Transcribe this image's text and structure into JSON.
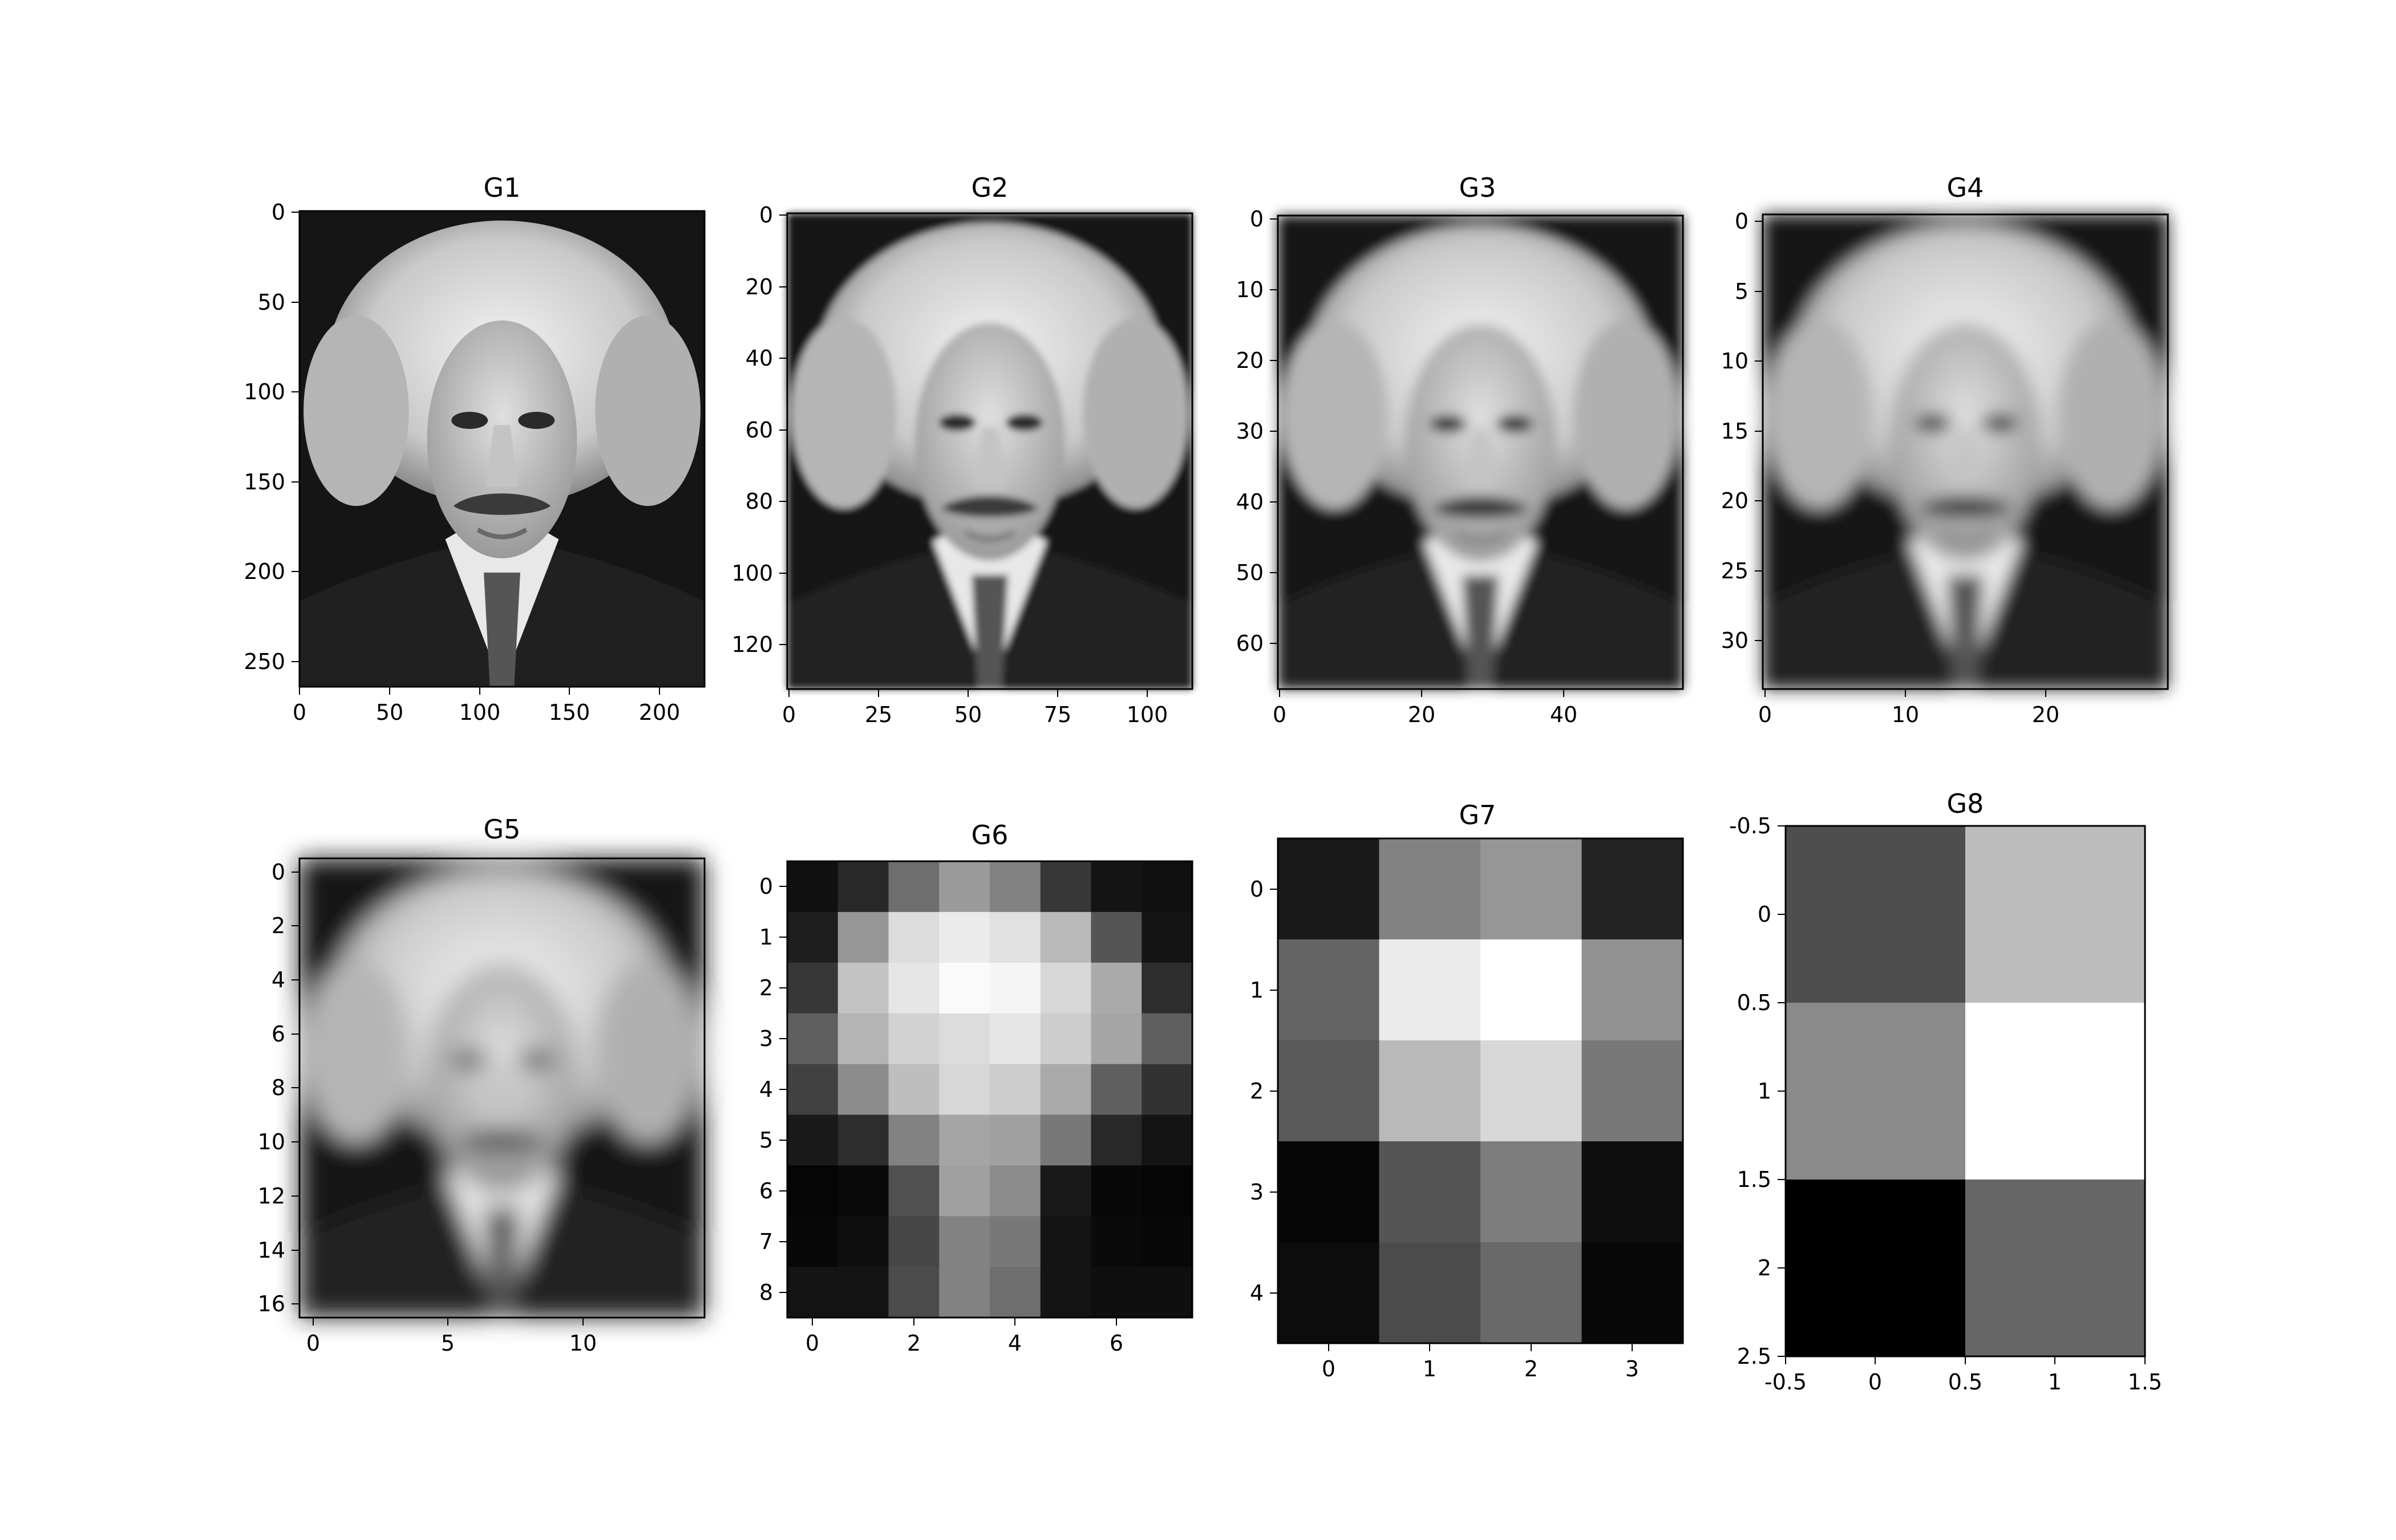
{
  "figure": {
    "layout": "2 rows x 4 columns",
    "colormap": "gray"
  },
  "chart_data": [
    {
      "type": "heatmap",
      "title": "G1",
      "image_subject": "portrait of Albert Einstein",
      "xlim": [
        0,
        225
      ],
      "ylim": [
        265,
        0
      ],
      "xticks": [
        0,
        50,
        100,
        150,
        200
      ],
      "yticks": [
        0,
        50,
        100,
        150,
        200,
        250
      ]
    },
    {
      "type": "heatmap",
      "title": "G2",
      "image_subject": "portrait of Albert Einstein",
      "xlim": [
        0,
        113
      ],
      "ylim": [
        133,
        0
      ],
      "xticks": [
        0,
        25,
        50,
        75,
        100
      ],
      "yticks": [
        0,
        20,
        40,
        60,
        80,
        100,
        120
      ]
    },
    {
      "type": "heatmap",
      "title": "G3",
      "image_subject": "portrait of Albert Einstein",
      "xlim": [
        0,
        57
      ],
      "ylim": [
        67,
        0
      ],
      "xticks": [
        0,
        20,
        40
      ],
      "yticks": [
        0,
        10,
        20,
        30,
        40,
        50,
        60
      ]
    },
    {
      "type": "heatmap",
      "title": "G4",
      "image_subject": "portrait of Albert Einstein",
      "xlim": [
        0,
        29
      ],
      "ylim": [
        34,
        0
      ],
      "xticks": [
        0,
        10,
        20
      ],
      "yticks": [
        0,
        5,
        10,
        15,
        20,
        25,
        30
      ]
    },
    {
      "type": "heatmap",
      "title": "G5",
      "image_subject": "portrait of Albert Einstein",
      "cols": 15,
      "rows": 17,
      "xlim": [
        -0.5,
        14.5
      ],
      "ylim": [
        16.5,
        -0.5
      ],
      "xticks": [
        0,
        5,
        10
      ],
      "yticks": [
        0,
        2,
        4,
        6,
        8,
        10,
        12,
        14,
        16
      ]
    },
    {
      "type": "heatmap",
      "title": "G6",
      "cols": 8,
      "rows": 9,
      "xlim": [
        -0.5,
        7.5
      ],
      "ylim": [
        8.5,
        -0.5
      ],
      "xticks": [
        0,
        2,
        4,
        6
      ],
      "yticks": [
        0,
        1,
        2,
        3,
        4,
        5,
        6,
        7,
        8
      ],
      "values": [
        [
          16,
          40,
          110,
          155,
          130,
          55,
          20,
          16
        ],
        [
          30,
          150,
          220,
          235,
          225,
          185,
          85,
          20
        ],
        [
          55,
          195,
          230,
          250,
          245,
          215,
          170,
          45
        ],
        [
          95,
          180,
          210,
          220,
          230,
          205,
          165,
          95
        ],
        [
          65,
          140,
          190,
          215,
          205,
          170,
          95,
          50
        ],
        [
          25,
          45,
          130,
          165,
          160,
          120,
          40,
          20
        ],
        [
          5,
          10,
          80,
          160,
          140,
          25,
          8,
          5
        ],
        [
          8,
          15,
          70,
          130,
          120,
          20,
          10,
          8
        ],
        [
          20,
          20,
          75,
          130,
          110,
          20,
          15,
          15
        ]
      ]
    },
    {
      "type": "heatmap",
      "title": "G7",
      "cols": 4,
      "rows": 5,
      "xlim": [
        -0.5,
        3.5
      ],
      "ylim": [
        4.5,
        -0.5
      ],
      "xticks": [
        0,
        1,
        2,
        3
      ],
      "yticks": [
        0,
        1,
        2,
        3,
        4
      ],
      "values": [
        [
          25,
          130,
          150,
          35
        ],
        [
          100,
          235,
          255,
          145
        ],
        [
          90,
          185,
          215,
          120
        ],
        [
          5,
          85,
          125,
          15
        ],
        [
          12,
          75,
          105,
          8
        ]
      ]
    },
    {
      "type": "heatmap",
      "title": "G8",
      "cols": 2,
      "rows": 3,
      "xlim": [
        -0.5,
        1.5
      ],
      "ylim": [
        2.5,
        -0.5
      ],
      "xticks": [
        -0.5,
        0.0,
        0.5,
        1.0,
        1.5
      ],
      "yticks": [
        -0.5,
        0.0,
        0.5,
        1.0,
        1.5,
        2.0,
        2.5
      ],
      "values": [
        [
          78,
          188
        ],
        [
          138,
          255
        ],
        [
          0,
          102
        ]
      ]
    }
  ]
}
